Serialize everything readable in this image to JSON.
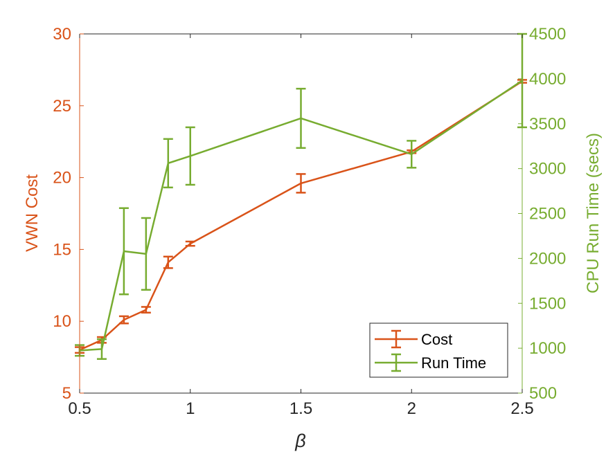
{
  "colors": {
    "cost": "#D95319",
    "runtime": "#77AC30",
    "axis": "#262626",
    "frame": "#262626",
    "background": "#ffffff"
  },
  "chart_data": {
    "type": "line",
    "xlabel": "β",
    "ylabel_left": "VWN Cost",
    "ylabel_right": "CPU Run Time (secs)",
    "xlim": [
      0.5,
      2.5
    ],
    "ylim_left": [
      5,
      30
    ],
    "ylim_right": [
      500,
      4500
    ],
    "x_ticks": [
      0.5,
      1,
      1.5,
      2,
      2.5
    ],
    "x_tick_labels": [
      "0.5",
      "1",
      "1.5",
      "2",
      "2.5"
    ],
    "y_left_ticks": [
      5,
      10,
      15,
      20,
      25,
      30
    ],
    "y_left_tick_labels": [
      "5",
      "10",
      "15",
      "20",
      "25",
      "30"
    ],
    "y_right_ticks": [
      500,
      1000,
      1500,
      2000,
      2500,
      3000,
      3500,
      4000,
      4500
    ],
    "y_right_tick_labels": [
      "500",
      "1000",
      "1500",
      "2000",
      "2500",
      "3000",
      "3500",
      "4000",
      "4500"
    ],
    "grid": false,
    "legend_position": "bottom-right",
    "series": [
      {
        "name": "Cost",
        "axis": "left",
        "x": [
          0.5,
          0.6,
          0.7,
          0.8,
          0.9,
          1.0,
          1.5,
          2.0,
          2.5
        ],
        "values": [
          8.0,
          8.7,
          10.1,
          10.8,
          14.1,
          15.4,
          19.6,
          21.8,
          26.7
        ],
        "error": [
          0.2,
          0.2,
          0.25,
          0.2,
          0.4,
          0.15,
          0.65,
          0.1,
          0.1
        ]
      },
      {
        "name": "Run Time",
        "axis": "right",
        "x": [
          0.5,
          0.6,
          0.7,
          0.8,
          0.9,
          1.0,
          1.5,
          2.0,
          2.5
        ],
        "values": [
          975,
          990,
          2080,
          2050,
          3060,
          3140,
          3560,
          3160,
          3980
        ],
        "error": [
          60,
          110,
          480,
          400,
          270,
          320,
          330,
          150,
          520
        ]
      }
    ]
  }
}
